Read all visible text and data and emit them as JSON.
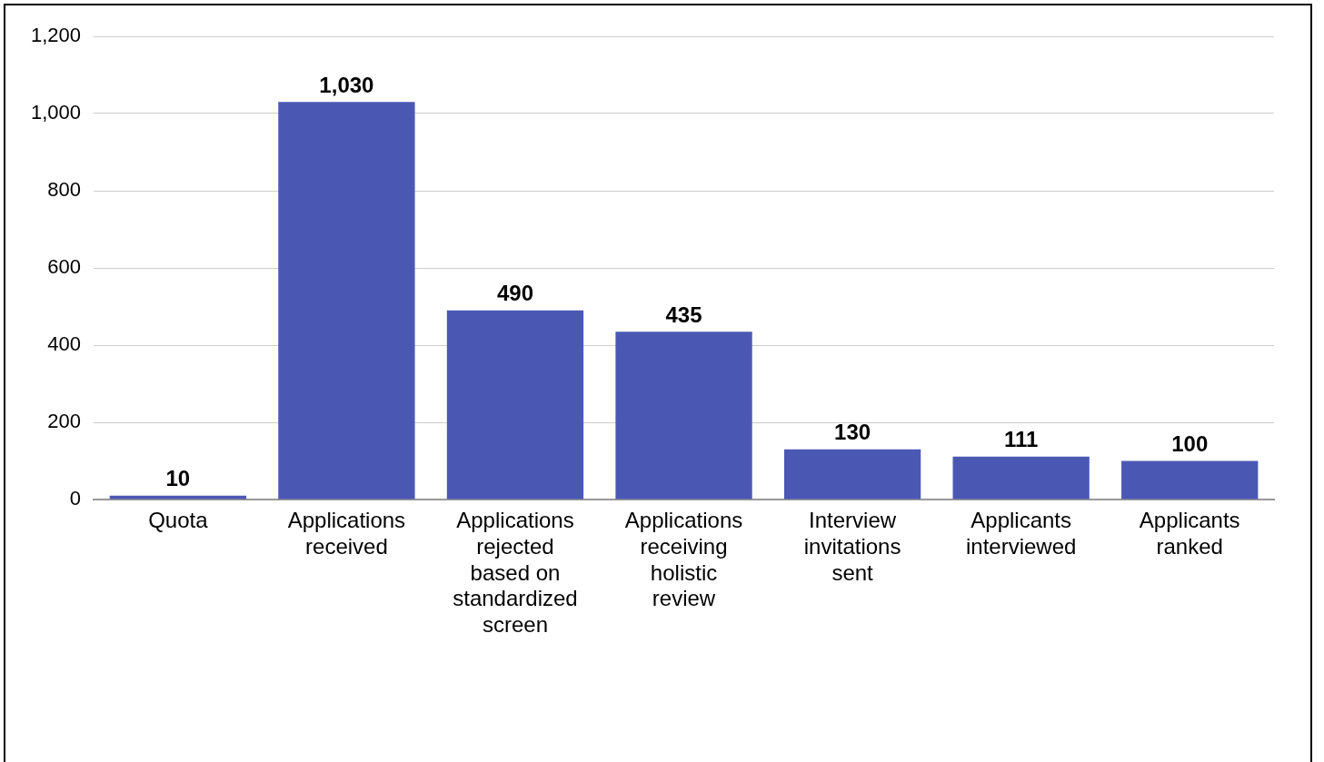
{
  "chart_data": {
    "type": "bar",
    "categories": [
      "Quota",
      "Applications received",
      "Applications rejected based on standardized screen",
      "Applications receiving holistic review",
      "Interview invitations sent",
      "Applicants interviewed",
      "Applicants ranked"
    ],
    "values": [
      10,
      1030,
      490,
      435,
      130,
      111,
      100
    ],
    "color": "#4b58b3",
    "value_labels": [
      "10",
      "1,030",
      "490",
      "435",
      "130",
      "111",
      "100"
    ],
    "ylim": [
      0,
      1200
    ],
    "yticks": [
      0,
      200,
      400,
      600,
      800,
      {
        "value": 1000,
        "label": "1,000"
      },
      {
        "value": 1200,
        "label": "1,200"
      }
    ],
    "grid": "y",
    "legend": false
  }
}
